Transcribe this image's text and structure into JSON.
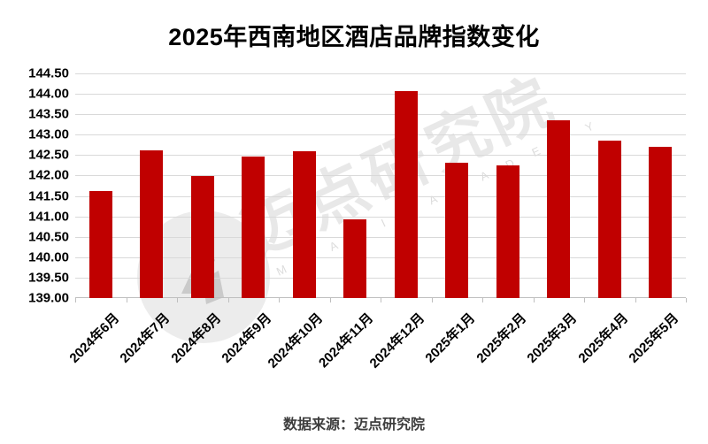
{
  "title": "2025年西南地区酒店品牌指数变化",
  "source": "数据来源：迈点研究院",
  "watermark": {
    "cn": "迈点研究院",
    "en": "M E A D I N  A C A D E M Y"
  },
  "colors": {
    "bar": "#c00000",
    "gridline": "#d9d9d9",
    "axis": "#bfbfbf",
    "tick": "#bfbfbf"
  },
  "chart_data": {
    "type": "bar",
    "title": "2025年西南地区酒店品牌指数变化",
    "categories": [
      "2024年6月",
      "2024年7月",
      "2024年8月",
      "2024年9月",
      "2024年10月",
      "2024年11月",
      "2024年12月",
      "2025年1月",
      "2025年2月",
      "2025年3月",
      "2025年4月",
      "2025年5月"
    ],
    "values": [
      141.62,
      142.62,
      141.99,
      142.46,
      142.6,
      140.93,
      144.06,
      142.31,
      142.24,
      143.36,
      142.86,
      142.7
    ],
    "xlabel": "",
    "ylabel": "",
    "ylim": [
      139.0,
      144.5
    ],
    "ytick_step": 0.5,
    "y_ticks": [
      "144.50",
      "144.00",
      "143.50",
      "143.00",
      "142.50",
      "142.00",
      "141.50",
      "141.00",
      "140.50",
      "140.00",
      "139.50",
      "139.00"
    ],
    "grid": true,
    "legend": false
  }
}
